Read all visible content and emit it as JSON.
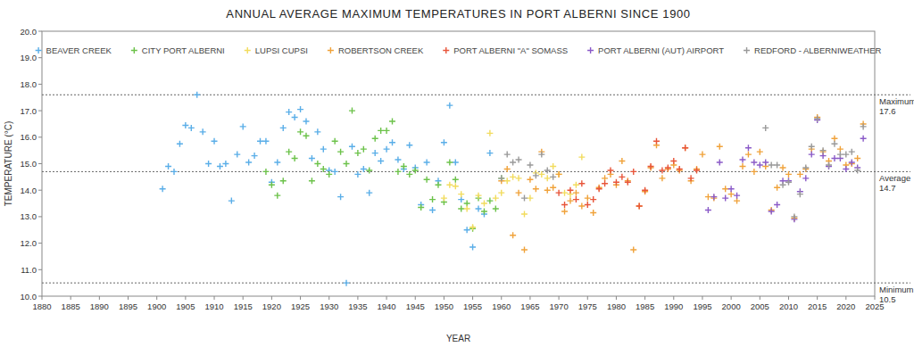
{
  "chart_data": {
    "type": "scatter",
    "title": "ANNUAL AVERAGE MAXIMUM TEMPERATURES IN PORT ALBERNI SINCE 1900",
    "x_label": "YEAR",
    "y_label": "TEMPERATURE (°C)",
    "marker": "plus",
    "grid": false,
    "legend": "top",
    "xlim": [
      1880,
      2025
    ],
    "xticks": [
      1880,
      1885,
      1890,
      1895,
      1900,
      1905,
      1910,
      1915,
      1920,
      1925,
      1930,
      1935,
      1940,
      1945,
      1950,
      1955,
      1960,
      1965,
      1970,
      1975,
      1980,
      1985,
      1990,
      1995,
      2000,
      2005,
      2010,
      2015,
      2020,
      2025
    ],
    "ylim": [
      10,
      20
    ],
    "yticks": [
      {
        "value": 10,
        "label": "10.0"
      },
      {
        "value": 11,
        "label": "11.0"
      },
      {
        "value": 12,
        "label": "12.0"
      },
      {
        "value": 13,
        "label": "13.0"
      },
      {
        "value": 14,
        "label": "14.0"
      },
      {
        "value": 15,
        "label": "15.0"
      },
      {
        "value": 16,
        "label": "16.0"
      },
      {
        "value": 17,
        "label": "17.0"
      },
      {
        "value": 18,
        "label": "18.0"
      },
      {
        "value": 19,
        "label": "19.0"
      },
      {
        "value": 20,
        "label": "20.0"
      }
    ],
    "annotations": [
      {
        "label": "Maximum",
        "value": 17.6
      },
      {
        "label": "Average",
        "value": 14.7
      },
      {
        "label": "Minimum",
        "value": 10.5
      }
    ],
    "series": [
      {
        "name": "BEAVER CREEK",
        "color": "#5aaee8",
        "x": [
          1901,
          1902,
          1903,
          1904,
          1905,
          1906,
          1907,
          1908,
          1909,
          1910,
          1911,
          1912,
          1913,
          1914,
          1915,
          1916,
          1917,
          1918,
          1919,
          1920,
          1921,
          1922,
          1923,
          1924,
          1925,
          1926,
          1927,
          1928,
          1929,
          1930,
          1931,
          1932,
          1933,
          1934,
          1935,
          1936,
          1937,
          1938,
          1939,
          1940,
          1941,
          1942,
          1943,
          1944,
          1945,
          1946,
          1947,
          1948,
          1949,
          1950,
          1951,
          1952,
          1953,
          1954,
          1955,
          1956,
          1957,
          1958
        ],
        "values": [
          14.05,
          14.9,
          14.7,
          15.75,
          16.45,
          16.35,
          17.6,
          16.2,
          15.0,
          15.85,
          14.9,
          15.0,
          13.6,
          15.35,
          16.4,
          15.05,
          15.3,
          15.85,
          15.85,
          14.3,
          15.05,
          16.35,
          16.95,
          16.75,
          17.05,
          16.6,
          15.2,
          16.2,
          15.55,
          14.75,
          14.7,
          13.75,
          10.5,
          15.65,
          14.6,
          14.8,
          13.9,
          15.4,
          15.1,
          15.55,
          15.8,
          15.15,
          14.8,
          15.7,
          14.85,
          13.45,
          15.05,
          13.25,
          14.35,
          15.8,
          17.2,
          15.05,
          13.65,
          12.5,
          11.85,
          13.3,
          13.1,
          15.4
        ]
      },
      {
        "name": "CITY PORT ALBERNI",
        "color": "#6cc24a",
        "x": [
          1919,
          1920,
          1921,
          1922,
          1923,
          1924,
          1925,
          1926,
          1927,
          1928,
          1929,
          1930,
          1931,
          1932,
          1933,
          1934,
          1935,
          1936,
          1937,
          1938,
          1939,
          1940,
          1941,
          1942,
          1943,
          1944,
          1945,
          1946,
          1947,
          1948,
          1949,
          1950,
          1951,
          1952,
          1953,
          1954,
          1955,
          1956,
          1957,
          1958,
          1959,
          1960
        ],
        "values": [
          14.7,
          14.2,
          13.8,
          14.35,
          15.45,
          15.2,
          16.2,
          16.05,
          14.35,
          15.0,
          14.8,
          14.6,
          15.85,
          15.45,
          15.0,
          17.0,
          15.4,
          15.55,
          14.75,
          15.95,
          16.25,
          16.25,
          16.6,
          14.7,
          14.9,
          14.6,
          14.75,
          13.35,
          14.4,
          13.65,
          14.2,
          13.55,
          15.05,
          14.4,
          13.3,
          13.5,
          12.55,
          13.7,
          13.2,
          13.6,
          13.3,
          14.45
        ]
      },
      {
        "name": "LUPSI CUPSI",
        "color": "#f2dc5d",
        "x": [
          1950,
          1951,
          1952,
          1953,
          1954,
          1955,
          1956,
          1957,
          1958,
          1959,
          1960,
          1961,
          1962,
          1963,
          1964,
          1965,
          1966,
          1967,
          1968,
          1969,
          1970,
          1971,
          1972,
          1973,
          1974
        ],
        "values": [
          13.7,
          14.2,
          14.15,
          13.85,
          13.3,
          12.6,
          13.8,
          13.5,
          16.15,
          13.7,
          13.9,
          14.35,
          14.5,
          14.45,
          13.1,
          13.7,
          14.65,
          14.6,
          14.45,
          14.9,
          14.6,
          13.9,
          13.85,
          14.2,
          15.25
        ]
      },
      {
        "name": "ROBERTSON CREEK",
        "color": "#f0a23a",
        "x": [
          1960,
          1961,
          1962,
          1963,
          1964,
          1965,
          1966,
          1967,
          1968,
          1969,
          1970,
          1971,
          1972,
          1973,
          1974,
          1975,
          1976,
          1977,
          1978,
          1979,
          1980,
          1981,
          1982,
          1983,
          1984,
          1985,
          1986,
          1987,
          1988,
          1989,
          1990,
          1991,
          1992,
          1993,
          1994,
          1995,
          1996,
          1997,
          1998,
          1999,
          2000,
          2001,
          2002,
          2003,
          2004,
          2005,
          2006,
          2007,
          2008,
          2009,
          2010,
          2011,
          2012,
          2013,
          2014,
          2015,
          2016,
          2017,
          2018,
          2019,
          2020,
          2021,
          2022,
          2023
        ],
        "values": [
          14.35,
          14.8,
          12.3,
          13.9,
          11.75,
          14.4,
          14.05,
          15.45,
          14.0,
          14.1,
          14.6,
          13.2,
          13.6,
          13.9,
          13.4,
          13.7,
          13.15,
          14.1,
          14.45,
          14.6,
          14.2,
          15.1,
          14.35,
          11.75,
          13.4,
          13.95,
          14.85,
          15.7,
          14.45,
          14.8,
          14.95,
          14.75,
          15.6,
          14.35,
          14.8,
          15.35,
          13.75,
          13.7,
          15.65,
          14.05,
          13.85,
          13.6,
          14.9,
          15.35,
          14.7,
          15.45,
          14.9,
          13.25,
          14.1,
          14.85,
          14.6,
          12.95,
          14.6,
          14.8,
          15.55,
          16.75,
          15.45,
          15.1,
          15.95,
          15.55,
          14.95,
          15.0,
          15.2,
          16.5
        ]
      },
      {
        "name": "PORT ALBERNI \"A\" SOMASS",
        "color": "#e8553a",
        "x": [
          1970,
          1971,
          1972,
          1973,
          1974,
          1975,
          1976,
          1977,
          1978,
          1979,
          1980,
          1981,
          1982,
          1983,
          1984,
          1985,
          1986,
          1987,
          1988,
          1989,
          1990,
          1991,
          1992,
          1993,
          1994
        ],
        "values": [
          13.9,
          13.45,
          14.0,
          13.65,
          14.25,
          13.45,
          13.65,
          14.05,
          14.25,
          14.75,
          14.3,
          14.5,
          14.3,
          14.7,
          13.4,
          14.0,
          14.9,
          15.85,
          14.75,
          14.85,
          15.1,
          14.8,
          15.6,
          14.45,
          14.75
        ]
      },
      {
        "name": "PORT ALBERNI (AUT) AIRPORT",
        "color": "#8a5ac8",
        "x": [
          1996,
          1997,
          1998,
          1999,
          2000,
          2001,
          2002,
          2003,
          2004,
          2005,
          2006,
          2007,
          2008,
          2009,
          2010,
          2011,
          2012,
          2013,
          2014,
          2015,
          2016,
          2017,
          2018,
          2019,
          2020,
          2021,
          2022,
          2023
        ],
        "values": [
          13.25,
          13.75,
          15.05,
          13.7,
          14.05,
          13.8,
          15.15,
          15.6,
          15.05,
          14.95,
          15.05,
          13.2,
          13.45,
          14.35,
          14.35,
          12.9,
          13.95,
          14.45,
          15.35,
          16.65,
          15.3,
          14.9,
          15.2,
          15.2,
          14.8,
          15.05,
          14.85,
          15.95
        ]
      },
      {
        "name": "REDFORD - ALBERNIWEATHER",
        "color": "#999999",
        "x": [
          1960,
          1961,
          1962,
          1963,
          1964,
          1965,
          1966,
          1967,
          1968,
          1969,
          2006,
          2007,
          2008,
          2009,
          2010,
          2011,
          2012,
          2013,
          2014,
          2015,
          2016,
          2017,
          2018,
          2019,
          2020,
          2021,
          2022,
          2023
        ],
        "values": [
          14.45,
          15.35,
          15.05,
          15.15,
          13.7,
          14.95,
          14.55,
          15.35,
          14.75,
          14.5,
          16.35,
          14.95,
          14.95,
          14.2,
          14.3,
          13.0,
          13.85,
          14.85,
          15.65,
          16.7,
          15.5,
          14.95,
          15.75,
          15.35,
          15.35,
          15.45,
          14.75,
          16.4
        ]
      }
    ]
  }
}
